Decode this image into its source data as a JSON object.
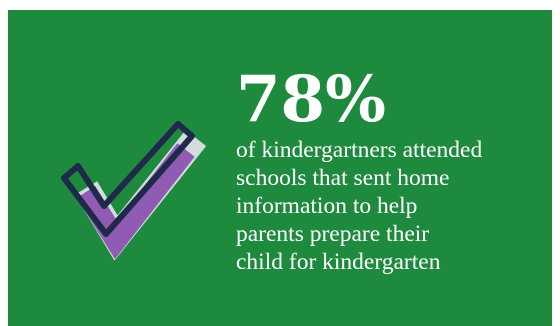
{
  "stat": {
    "value": "78%",
    "lines": [
      "of kindergartners attended",
      "schools that sent home",
      "information to help",
      "parents prepare their",
      "child for kindergarten"
    ]
  },
  "icons": {
    "check": "checkmark-icon"
  },
  "colors": {
    "background": "#1e8a3e",
    "check_outline": "#1f2a4a",
    "check_fill": "#8f5bb3",
    "check_shadow": "#e8e6ee"
  }
}
